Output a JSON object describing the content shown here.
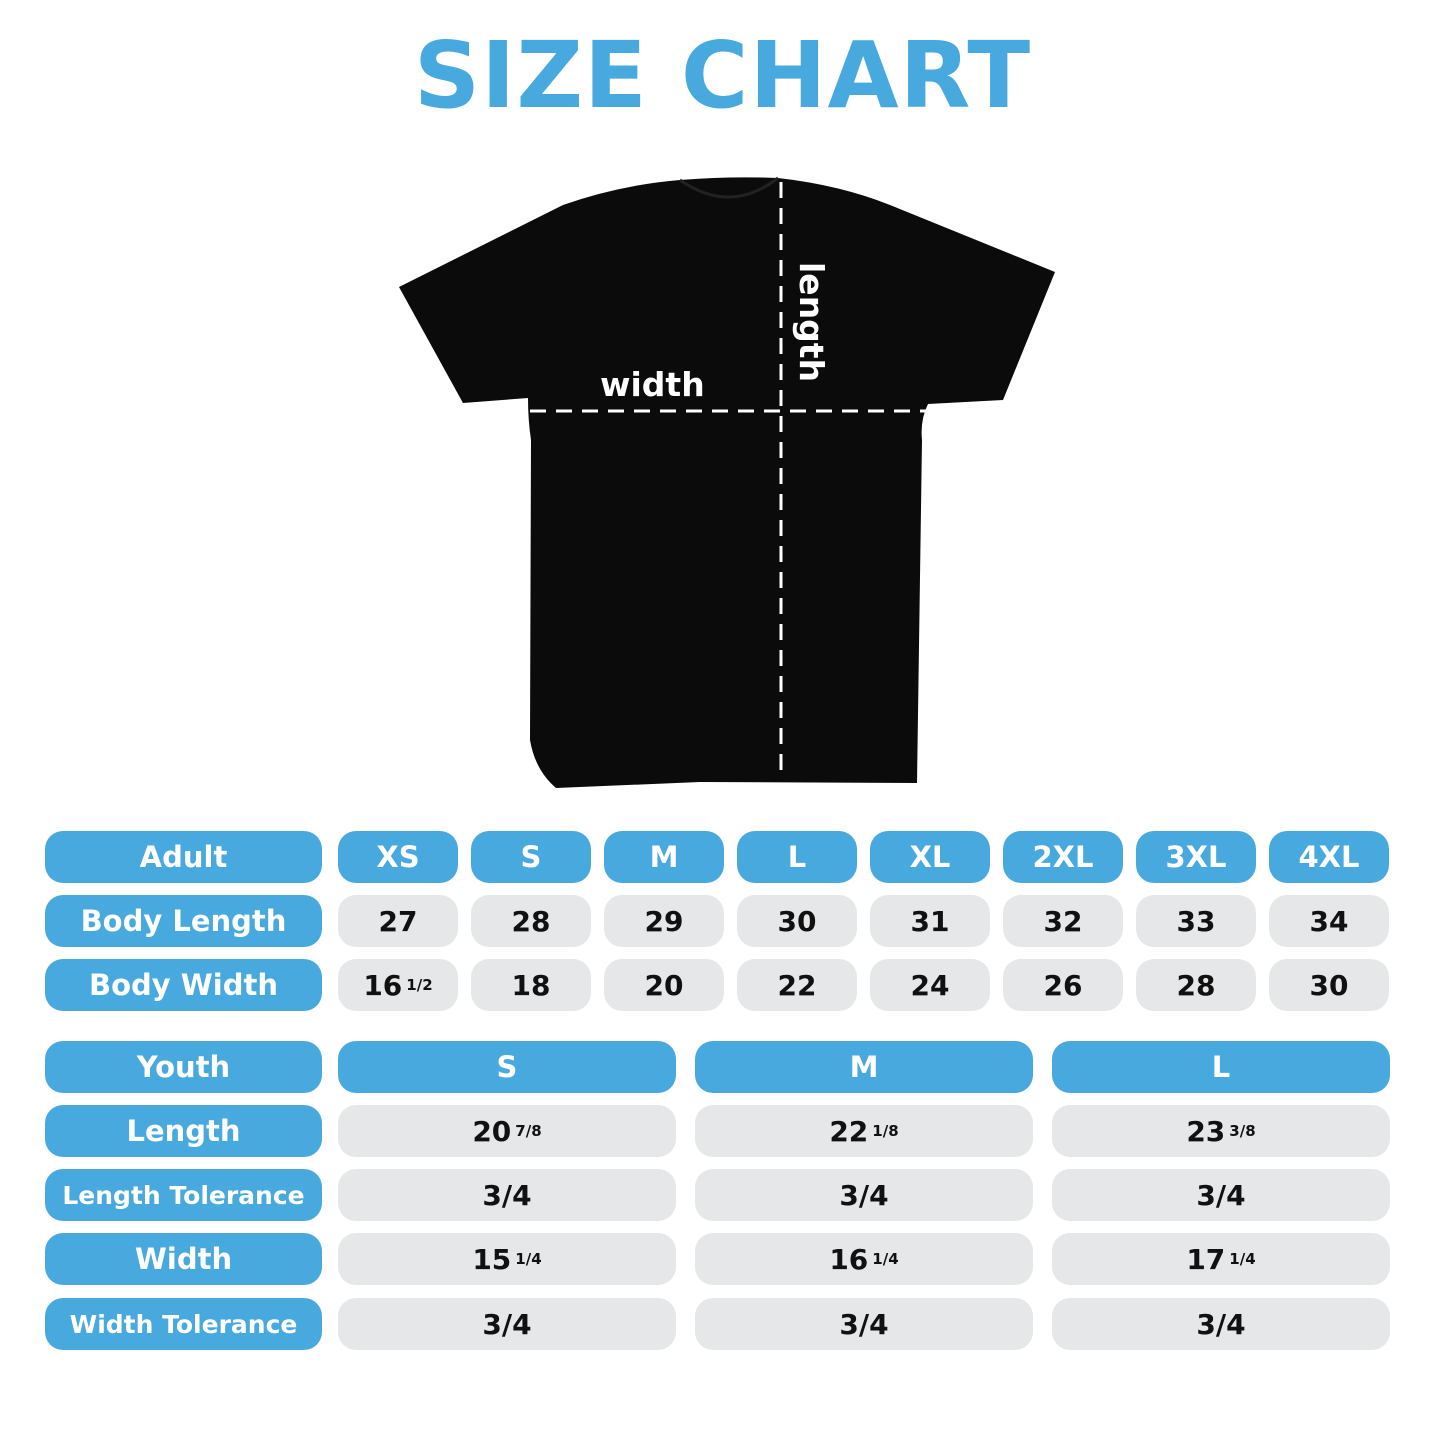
{
  "title": "SIZE CHART",
  "shirt": {
    "width_label": "width",
    "length_label": "length",
    "shirt_color": "#000000"
  },
  "colors": {
    "accent": "#48a9de",
    "cell_bg": "#e6e7e9"
  },
  "adult": {
    "header": "Adult",
    "sizes": [
      "XS",
      "S",
      "M",
      "L",
      "XL",
      "2XL",
      "3XL",
      "4XL"
    ],
    "rows": [
      {
        "label": "Body Length",
        "values": [
          {
            "whole": "27"
          },
          {
            "whole": "28"
          },
          {
            "whole": "29"
          },
          {
            "whole": "30"
          },
          {
            "whole": "31"
          },
          {
            "whole": "32"
          },
          {
            "whole": "33"
          },
          {
            "whole": "34"
          }
        ]
      },
      {
        "label": "Body Width",
        "values": [
          {
            "whole": "16",
            "frac": "1/2"
          },
          {
            "whole": "18"
          },
          {
            "whole": "20"
          },
          {
            "whole": "22"
          },
          {
            "whole": "24"
          },
          {
            "whole": "26"
          },
          {
            "whole": "28"
          },
          {
            "whole": "30"
          }
        ]
      }
    ]
  },
  "youth": {
    "header": "Youth",
    "sizes": [
      "S",
      "M",
      "L"
    ],
    "rows": [
      {
        "label": "Length",
        "values": [
          {
            "whole": "20",
            "frac": "7/8"
          },
          {
            "whole": "22",
            "frac": "1/8"
          },
          {
            "whole": "23",
            "frac": "3/8"
          }
        ]
      },
      {
        "label": "Length Tolerance",
        "values": [
          {
            "whole": "3/4"
          },
          {
            "whole": "3/4"
          },
          {
            "whole": "3/4"
          }
        ]
      },
      {
        "label": "Width",
        "values": [
          {
            "whole": "15",
            "frac": "1/4"
          },
          {
            "whole": "16",
            "frac": "1/4"
          },
          {
            "whole": "17",
            "frac": "1/4"
          }
        ]
      },
      {
        "label": "Width Tolerance",
        "values": [
          {
            "whole": "3/4"
          },
          {
            "whole": "3/4"
          },
          {
            "whole": "3/4"
          }
        ]
      }
    ]
  }
}
